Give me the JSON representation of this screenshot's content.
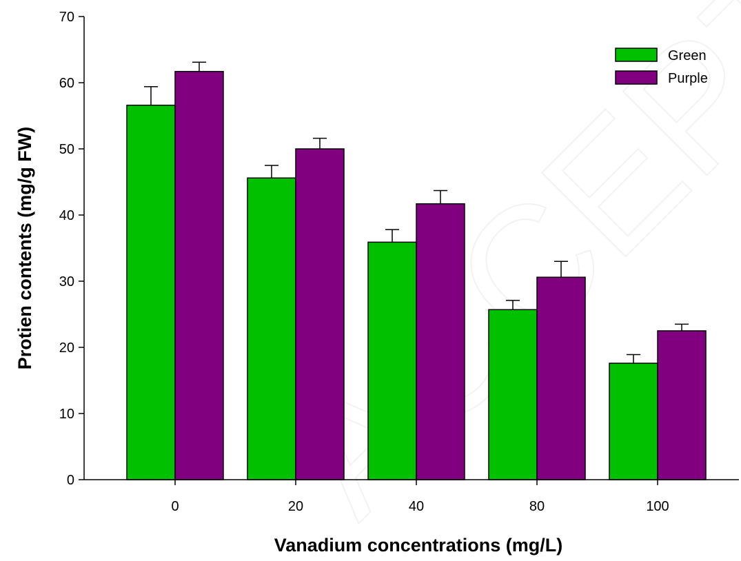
{
  "chart_data": {
    "type": "bar",
    "title": "",
    "xlabel": "Vanadium concentrations (mg/L)",
    "ylabel": "Protien contents (mg/g FW)",
    "ylim": [
      0,
      70
    ],
    "yticks": [
      0,
      10,
      20,
      30,
      40,
      50,
      60,
      70
    ],
    "categories": [
      "0",
      "20",
      "40",
      "80",
      "100"
    ],
    "series": [
      {
        "name": "Green",
        "color": "#00c000",
        "values": [
          56.6,
          45.6,
          35.9,
          25.7,
          17.6
        ],
        "errors": [
          2.8,
          1.9,
          1.9,
          1.4,
          1.3
        ]
      },
      {
        "name": "Purple",
        "color": "#800080",
        "values": [
          61.7,
          50.0,
          41.7,
          30.6,
          22.5
        ],
        "errors": [
          1.4,
          1.6,
          2.0,
          2.4,
          1.0
        ]
      }
    ],
    "legend_position": "top-right",
    "grid": false
  },
  "watermark": "ACCEPTED MANUSCRIPT"
}
